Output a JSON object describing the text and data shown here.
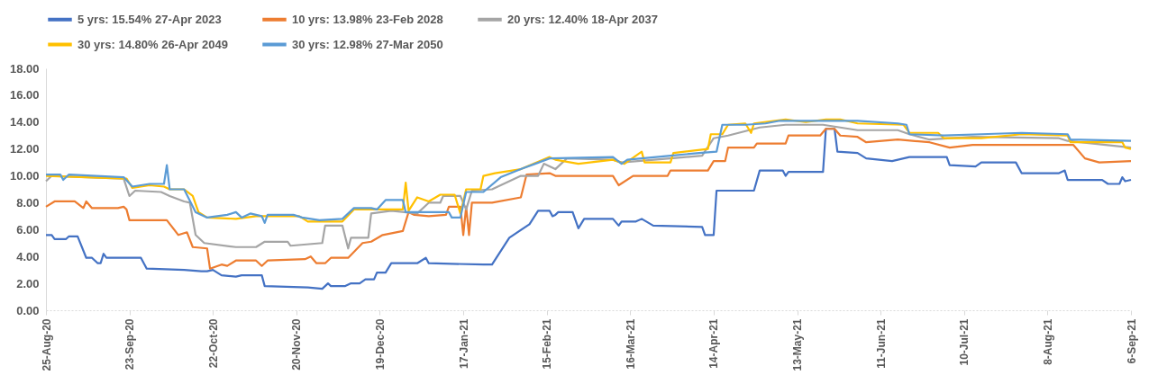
{
  "chart_data": {
    "type": "line",
    "xlim": [
      "2020-08-25",
      "2021-09-06"
    ],
    "xticks": [
      {
        "value": "2020-08-25",
        "label": "25-Aug-20"
      },
      {
        "value": "2020-09-23",
        "label": "23-Sep-20"
      },
      {
        "value": "2020-10-22",
        "label": "22-Oct-20"
      },
      {
        "value": "2020-11-20",
        "label": "20-Nov-20"
      },
      {
        "value": "2020-12-19",
        "label": "19-Dec-20"
      },
      {
        "value": "2021-01-17",
        "label": "17-Jan-21"
      },
      {
        "value": "2021-02-15",
        "label": "15-Feb-21"
      },
      {
        "value": "2021-03-16",
        "label": "16-Mar-21"
      },
      {
        "value": "2021-04-14",
        "label": "14-Apr-21"
      },
      {
        "value": "2021-05-13",
        "label": "13-May-21"
      },
      {
        "value": "2021-06-11",
        "label": "11-Jun-21"
      },
      {
        "value": "2021-07-10",
        "label": "10-Jul-21"
      },
      {
        "value": "2021-08-08",
        "label": "8-Aug-21"
      },
      {
        "value": "2021-09-06",
        "label": "6-Sep-21"
      }
    ],
    "ylim": [
      0,
      18
    ],
    "yticks": [
      {
        "value": 0,
        "label": "0.00"
      },
      {
        "value": 2,
        "label": "2.00"
      },
      {
        "value": 4,
        "label": "4.00"
      },
      {
        "value": 6,
        "label": "6.00"
      },
      {
        "value": 8,
        "label": "8.00"
      },
      {
        "value": 10,
        "label": "10.00"
      },
      {
        "value": 12,
        "label": "12.00"
      },
      {
        "value": 14,
        "label": "14.00"
      },
      {
        "value": 16,
        "label": "16.00"
      },
      {
        "value": 18,
        "label": "18.00"
      }
    ],
    "grid": false,
    "legend": "top",
    "marker": "none",
    "line_style": "solid",
    "series": [
      {
        "name": "5 yrs: 15.54% 27-Apr 2023",
        "color": "#4472c4",
        "x": [
          "2020-08-25",
          "2020-08-27",
          "2020-08-28",
          "2020-09-01",
          "2020-09-02",
          "2020-09-05",
          "2020-09-08",
          "2020-09-10",
          "2020-09-12",
          "2020-09-13",
          "2020-09-14",
          "2020-09-15",
          "2020-09-27",
          "2020-09-29",
          "2020-10-12",
          "2020-10-18",
          "2020-10-20",
          "2020-10-22",
          "2020-10-25",
          "2020-10-30",
          "2020-11-01",
          "2020-11-08",
          "2020-11-09",
          "2020-11-24",
          "2020-11-29",
          "2020-12-01",
          "2020-12-02",
          "2020-12-07",
          "2020-12-09",
          "2020-12-12",
          "2020-12-14",
          "2020-12-17",
          "2020-12-18",
          "2020-12-21",
          "2020-12-23",
          "2021-01-01",
          "2021-01-04",
          "2021-01-05",
          "2021-01-24",
          "2021-01-27",
          "2021-02-02",
          "2021-02-09",
          "2021-02-12",
          "2021-02-16",
          "2021-02-17",
          "2021-02-18",
          "2021-02-19",
          "2021-02-24",
          "2021-02-26",
          "2021-02-28",
          "2021-03-10",
          "2021-03-12",
          "2021-03-13",
          "2021-03-18",
          "2021-03-20",
          "2021-03-24",
          "2021-04-10",
          "2021-04-11",
          "2021-04-14",
          "2021-04-15",
          "2021-04-28",
          "2021-04-30",
          "2021-05-08",
          "2021-05-09",
          "2021-05-10",
          "2021-05-20",
          "2021-05-22",
          "2021-05-23",
          "2021-05-26",
          "2021-05-27",
          "2021-06-03",
          "2021-06-06",
          "2021-06-15",
          "2021-06-21",
          "2021-07-04",
          "2021-07-05",
          "2021-07-14",
          "2021-07-16",
          "2021-07-28",
          "2021-07-30",
          "2021-08-12",
          "2021-08-14",
          "2021-08-15",
          "2021-08-27",
          "2021-08-29",
          "2021-09-02",
          "2021-09-03",
          "2021-09-04",
          "2021-09-06"
        ],
        "values": [
          5.6,
          5.6,
          5.3,
          5.3,
          5.5,
          5.5,
          3.9,
          3.9,
          3.5,
          3.5,
          4.2,
          3.9,
          3.9,
          3.1,
          3.0,
          2.9,
          2.9,
          3.0,
          2.6,
          2.5,
          2.6,
          2.6,
          1.8,
          1.7,
          1.6,
          2.0,
          1.8,
          1.8,
          2.0,
          2.0,
          2.3,
          2.3,
          2.8,
          2.8,
          3.5,
          3.5,
          3.9,
          3.5,
          3.4,
          3.4,
          5.4,
          6.4,
          7.4,
          7.4,
          7.0,
          7.1,
          7.3,
          7.3,
          6.1,
          6.8,
          6.8,
          6.3,
          6.6,
          6.6,
          6.8,
          6.3,
          6.2,
          5.6,
          5.6,
          8.9,
          8.9,
          10.4,
          10.4,
          10.0,
          10.3,
          10.3,
          10.3,
          13.5,
          13.5,
          11.8,
          11.7,
          11.3,
          11.1,
          11.4,
          11.4,
          10.8,
          10.7,
          11.0,
          11.0,
          10.2,
          10.2,
          10.4,
          9.7,
          9.7,
          9.4,
          9.4,
          9.9,
          9.6,
          9.7
        ]
      },
      {
        "name": "10 yrs: 13.98% 23-Feb 2028",
        "color": "#ed7d31",
        "x": [
          "2020-08-25",
          "2020-08-28",
          "2020-09-04",
          "2020-09-07",
          "2020-09-08",
          "2020-09-10",
          "2020-09-19",
          "2020-09-21",
          "2020-09-22",
          "2020-09-23",
          "2020-10-06",
          "2020-10-10",
          "2020-10-13",
          "2020-10-15",
          "2020-10-20",
          "2020-10-21",
          "2020-10-25",
          "2020-10-27",
          "2020-10-30",
          "2020-11-06",
          "2020-11-08",
          "2020-11-10",
          "2020-11-23",
          "2020-11-25",
          "2020-11-27",
          "2020-11-30",
          "2020-12-02",
          "2020-12-08",
          "2020-12-13",
          "2020-12-16",
          "2020-12-20",
          "2020-12-27",
          "2020-12-29",
          "2020-12-31",
          "2021-01-05",
          "2021-01-11",
          "2021-01-12",
          "2021-01-16",
          "2021-01-17",
          "2021-01-18",
          "2021-01-19",
          "2021-01-20",
          "2021-01-27",
          "2021-02-06",
          "2021-02-08",
          "2021-02-16",
          "2021-02-18",
          "2021-03-10",
          "2021-03-12",
          "2021-03-17",
          "2021-03-29",
          "2021-03-30",
          "2021-04-12",
          "2021-04-14",
          "2021-04-18",
          "2021-04-19",
          "2021-04-28",
          "2021-04-29",
          "2021-05-09",
          "2021-05-10",
          "2021-05-21",
          "2021-05-23",
          "2021-05-26",
          "2021-05-28",
          "2021-06-03",
          "2021-06-06",
          "2021-06-17",
          "2021-06-28",
          "2021-07-05",
          "2021-07-13",
          "2021-08-17",
          "2021-08-21",
          "2021-08-26",
          "2021-09-06"
        ],
        "values": [
          7.7,
          8.1,
          8.1,
          7.6,
          8.1,
          7.6,
          7.6,
          7.7,
          7.5,
          6.7,
          6.7,
          5.6,
          5.8,
          4.7,
          4.6,
          3.1,
          3.4,
          3.3,
          3.7,
          3.7,
          3.3,
          3.7,
          3.8,
          4.0,
          3.5,
          3.5,
          3.9,
          3.9,
          5.0,
          5.1,
          5.6,
          5.9,
          7.3,
          7.1,
          7.0,
          7.1,
          7.7,
          7.7,
          5.6,
          7.7,
          5.6,
          8.0,
          8.0,
          8.4,
          10.1,
          10.2,
          10.0,
          10.0,
          9.3,
          10.0,
          10.0,
          10.4,
          10.4,
          11.1,
          11.1,
          12.1,
          12.1,
          12.4,
          12.4,
          13.0,
          13.0,
          13.5,
          13.5,
          13.0,
          12.9,
          12.5,
          12.7,
          12.5,
          12.1,
          12.3,
          12.3,
          11.3,
          11.0,
          11.1
        ]
      },
      {
        "name": "20 yrs: 12.40% 18-Apr 2037",
        "color": "#a5a5a5",
        "x": [
          "2020-08-25",
          "2020-08-27",
          "2020-09-21",
          "2020-09-23",
          "2020-09-25",
          "2020-10-04",
          "2020-10-07",
          "2020-10-12",
          "2020-10-14",
          "2020-10-16",
          "2020-10-19",
          "2020-10-30",
          "2020-11-06",
          "2020-11-09",
          "2020-11-17",
          "2020-11-18",
          "2020-11-29",
          "2020-11-30",
          "2020-12-06",
          "2020-12-08",
          "2020-12-09",
          "2020-12-15",
          "2020-12-16",
          "2020-12-23",
          "2021-01-01",
          "2021-01-05",
          "2021-01-09",
          "2021-01-10",
          "2021-01-16",
          "2021-01-18",
          "2021-01-20",
          "2021-01-27",
          "2021-02-06",
          "2021-02-12",
          "2021-02-14",
          "2021-02-18",
          "2021-02-22",
          "2021-03-10",
          "2021-03-13",
          "2021-03-30",
          "2021-04-10",
          "2021-04-14",
          "2021-04-19",
          "2021-04-30",
          "2021-05-09",
          "2021-05-22",
          "2021-06-03",
          "2021-06-17",
          "2021-06-21",
          "2021-06-28",
          "2021-07-13",
          "2021-08-12",
          "2021-08-15",
          "2021-09-06"
        ],
        "values": [
          9.6,
          10.0,
          9.8,
          8.5,
          8.9,
          8.8,
          8.5,
          8.1,
          8.0,
          5.6,
          5.0,
          4.7,
          4.7,
          5.1,
          5.1,
          4.8,
          5.0,
          6.3,
          6.3,
          4.6,
          5.4,
          5.4,
          7.2,
          7.4,
          7.2,
          8.0,
          8.0,
          8.5,
          8.5,
          7.5,
          8.9,
          9.0,
          10.0,
          10.0,
          10.9,
          10.5,
          11.3,
          11.2,
          11.0,
          11.3,
          11.5,
          12.8,
          13.0,
          13.6,
          13.8,
          13.8,
          13.4,
          13.4,
          13.1,
          12.7,
          12.9,
          12.8,
          12.6,
          12.1
        ]
      },
      {
        "name": "30 yrs: 14.80% 26-Apr 2049",
        "color": "#ffc000",
        "x": [
          "2020-08-25",
          "2020-09-22",
          "2020-09-24",
          "2020-09-30",
          "2020-10-05",
          "2020-10-07",
          "2020-10-12",
          "2020-10-15",
          "2020-10-17",
          "2020-10-20",
          "2020-10-30",
          "2020-11-06",
          "2020-11-21",
          "2020-11-24",
          "2020-12-06",
          "2020-12-10",
          "2020-12-27",
          "2020-12-28",
          "2020-12-29",
          "2021-01-01",
          "2021-01-05",
          "2021-01-09",
          "2021-01-14",
          "2021-01-16",
          "2021-01-18",
          "2021-01-23",
          "2021-01-24",
          "2021-01-28",
          "2021-02-06",
          "2021-02-16",
          "2021-02-18",
          "2021-02-26",
          "2021-03-10",
          "2021-03-14",
          "2021-03-20",
          "2021-03-21",
          "2021-03-30",
          "2021-03-31",
          "2021-04-12",
          "2021-04-13",
          "2021-04-17",
          "2021-04-19",
          "2021-04-25",
          "2021-04-27",
          "2021-04-28",
          "2021-05-09",
          "2021-05-16",
          "2021-05-23",
          "2021-05-28",
          "2021-06-03",
          "2021-06-19",
          "2021-06-21",
          "2021-07-01",
          "2021-07-03",
          "2021-07-16",
          "2021-07-30",
          "2021-08-15",
          "2021-08-16",
          "2021-09-03",
          "2021-09-04",
          "2021-09-06"
        ],
        "values": [
          10.0,
          9.8,
          9.1,
          9.3,
          9.2,
          9.0,
          9.0,
          8.5,
          7.3,
          6.9,
          6.8,
          7.0,
          7.0,
          6.6,
          6.6,
          7.5,
          7.5,
          9.5,
          7.4,
          8.4,
          8.1,
          8.6,
          8.6,
          7.2,
          9.0,
          9.0,
          10.0,
          10.2,
          10.5,
          11.4,
          11.2,
          10.9,
          11.2,
          10.9,
          11.8,
          11.0,
          11.0,
          11.7,
          12.0,
          13.1,
          13.1,
          13.8,
          13.9,
          13.2,
          13.9,
          14.2,
          14.0,
          14.2,
          14.2,
          13.9,
          13.8,
          13.2,
          13.2,
          12.8,
          12.8,
          13.1,
          13.0,
          12.5,
          12.5,
          12.1,
          12.0
        ]
      },
      {
        "name": "30 yrs: 12.98% 27-Mar 2050",
        "color": "#5b9bd5",
        "x": [
          "2020-08-25",
          "2020-08-30",
          "2020-08-31",
          "2020-09-02",
          "2020-09-21",
          "2020-09-24",
          "2020-09-30",
          "2020-10-05",
          "2020-10-06",
          "2020-10-07",
          "2020-10-12",
          "2020-10-16",
          "2020-10-20",
          "2020-10-27",
          "2020-10-30",
          "2020-11-01",
          "2020-11-04",
          "2020-11-08",
          "2020-11-09",
          "2020-11-10",
          "2020-11-19",
          "2020-11-22",
          "2020-11-28",
          "2020-12-06",
          "2020-12-10",
          "2020-12-16",
          "2020-12-18",
          "2020-12-21",
          "2020-12-27",
          "2020-12-28",
          "2021-01-12",
          "2021-01-13",
          "2021-01-16",
          "2021-01-18",
          "2021-01-24",
          "2021-01-30",
          "2021-02-06",
          "2021-02-11",
          "2021-02-16",
          "2021-03-10",
          "2021-03-13",
          "2021-03-15",
          "2021-03-30",
          "2021-04-09",
          "2021-04-15",
          "2021-04-17",
          "2021-04-25",
          "2021-05-02",
          "2021-05-07",
          "2021-06-03",
          "2021-06-17",
          "2021-06-20",
          "2021-06-21",
          "2021-07-03",
          "2021-07-16",
          "2021-07-30",
          "2021-08-15",
          "2021-08-16",
          "2021-09-06"
        ],
        "values": [
          10.1,
          10.1,
          9.7,
          10.1,
          9.9,
          9.2,
          9.4,
          9.4,
          10.8,
          9.0,
          9.0,
          7.3,
          6.9,
          7.1,
          7.3,
          6.9,
          7.2,
          7.0,
          6.5,
          7.1,
          7.1,
          6.9,
          6.7,
          6.8,
          7.6,
          7.6,
          7.5,
          8.2,
          8.2,
          7.3,
          7.3,
          6.9,
          6.9,
          8.8,
          8.8,
          9.9,
          10.5,
          10.9,
          11.3,
          11.4,
          10.9,
          11.2,
          11.5,
          11.7,
          11.8,
          13.8,
          13.8,
          13.9,
          14.1,
          14.1,
          13.9,
          13.8,
          13.1,
          13.0,
          13.1,
          13.2,
          13.1,
          12.7,
          12.6
        ]
      }
    ]
  }
}
